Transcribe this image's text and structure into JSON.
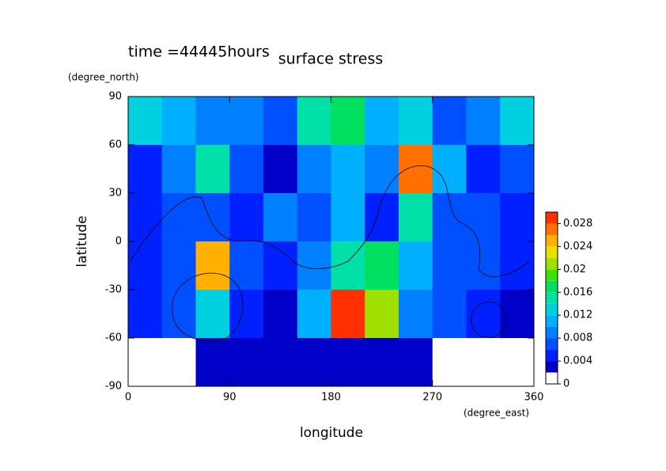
{
  "chart_data": {
    "type": "contour",
    "title": "surface stress",
    "subtitle": "time =44445hours",
    "x_label": "longitude",
    "y_label": "latitude",
    "x_unit": "(degree_east)",
    "y_unit": "(degree_north)",
    "xlim": [
      0,
      360
    ],
    "ylim": [
      -90,
      90
    ],
    "xticks": [
      0,
      90,
      180,
      270,
      360
    ],
    "yticks": [
      -90,
      -60,
      -30,
      0,
      30,
      60,
      90
    ],
    "x": [
      15,
      45,
      75,
      105,
      135,
      165,
      195,
      225,
      255,
      285,
      315,
      345
    ],
    "y": [
      75,
      45,
      15,
      -15,
      -45,
      -75
    ],
    "z": [
      [
        0.012,
        0.01,
        0.008,
        0.008,
        0.006,
        0.014,
        0.016,
        0.01,
        0.012,
        0.006,
        0.008,
        0.012
      ],
      [
        0.004,
        0.008,
        0.014,
        0.006,
        0.002,
        0.008,
        0.01,
        0.008,
        0.026,
        0.01,
        0.004,
        0.006
      ],
      [
        0.004,
        0.006,
        0.006,
        0.004,
        0.008,
        0.006,
        0.01,
        0.004,
        0.014,
        0.006,
        0.006,
        0.004
      ],
      [
        0.004,
        0.006,
        0.024,
        0.006,
        0.004,
        0.008,
        0.014,
        0.016,
        0.01,
        0.006,
        0.006,
        0.004
      ],
      [
        0.004,
        0.006,
        0.012,
        0.004,
        0.002,
        0.01,
        0.028,
        0.02,
        0.008,
        0.006,
        0.004,
        0.002
      ],
      [
        0,
        0,
        0.002,
        0.002,
        0.002,
        0.002,
        0.002,
        0.002,
        0.002,
        0,
        0,
        0
      ]
    ],
    "levels": [
      0,
      0.002,
      0.004,
      0.006,
      0.008,
      0.01,
      0.012,
      0.014,
      0.016,
      0.018,
      0.02,
      0.022,
      0.024,
      0.026,
      0.028,
      0.03
    ],
    "colors": [
      "#ffffff",
      "#0000c8",
      "#0020ff",
      "#0050ff",
      "#0080ff",
      "#00b0ff",
      "#00d0e0",
      "#00e0a8",
      "#00e060",
      "#40e000",
      "#a0e000",
      "#e8e000",
      "#ffb000",
      "#ff7000",
      "#ff3000"
    ],
    "colorbar_ticks": [
      0,
      0.004,
      0.008,
      0.012,
      0.016,
      0.02,
      0.024,
      0.028
    ]
  }
}
